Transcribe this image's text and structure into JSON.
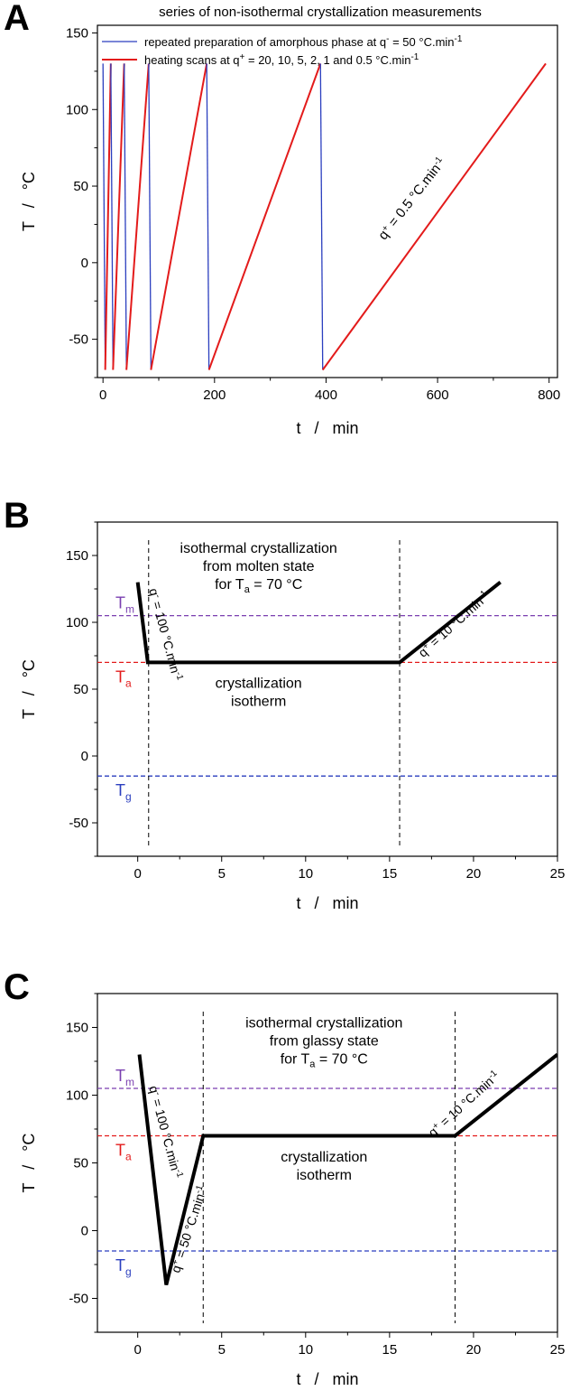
{
  "figure": {
    "panels": [
      "A",
      "B",
      "C"
    ]
  },
  "colors": {
    "cooling": "#2b3fbf",
    "heating": "#e31b1b",
    "protocol": "#000000",
    "Tm": "#7a3fb0",
    "Ta": "#e31b1b",
    "Tg": "#2b3fbf",
    "divider": "#000000"
  },
  "chart_data": [
    {
      "panel": "A",
      "type": "line",
      "title": "series of non-isothermal crystallization measurements",
      "xlabel": "t   /   min",
      "ylabel": "T   /   °C",
      "xlim": [
        -10,
        815
      ],
      "ylim": [
        -75,
        155
      ],
      "xticks": [
        0,
        200,
        400,
        600,
        800
      ],
      "yticks": [
        -50,
        0,
        50,
        100,
        150
      ],
      "grid": false,
      "legend": {
        "position": "top-left",
        "entries": [
          {
            "name_html": "repeated preparation of amorphous phase at q<tspan dy='-5' font-size='10'>-</tspan><tspan dy='5'> = 50 °C.min</tspan><tspan dy='-5' font-size='10'>-1</tspan>",
            "color_key": "cooling"
          },
          {
            "name_html": "heating scans at q<tspan dy='-5' font-size='10'>+</tspan><tspan dy='5'> = 20, 10, 5, 2, 1 and 0.5 °C.min</tspan><tspan dy='-5' font-size='10'>-1</tspan>",
            "color_key": "heating"
          }
        ]
      },
      "series": [
        {
          "kind": "cooling",
          "points": [
            [
              0,
              130
            ],
            [
              4,
              -70
            ]
          ]
        },
        {
          "kind": "heating",
          "points": [
            [
              4,
              -70
            ],
            [
              14,
              130
            ]
          ]
        },
        {
          "kind": "cooling",
          "points": [
            [
              14,
              130
            ],
            [
              18,
              -70
            ]
          ]
        },
        {
          "kind": "heating",
          "points": [
            [
              18,
              -70
            ],
            [
              38,
              130
            ]
          ]
        },
        {
          "kind": "cooling",
          "points": [
            [
              38,
              130
            ],
            [
              42,
              -70
            ]
          ]
        },
        {
          "kind": "heating",
          "points": [
            [
              42,
              -70
            ],
            [
              82,
              130
            ]
          ]
        },
        {
          "kind": "cooling",
          "points": [
            [
              82,
              130
            ],
            [
              86,
              -70
            ]
          ]
        },
        {
          "kind": "heating",
          "points": [
            [
              86,
              -70
            ],
            [
              186,
              130
            ]
          ]
        },
        {
          "kind": "cooling",
          "points": [
            [
              186,
              130
            ],
            [
              190,
              -70
            ]
          ]
        },
        {
          "kind": "heating",
          "points": [
            [
              190,
              -70
            ],
            [
              390,
              130
            ]
          ]
        },
        {
          "kind": "cooling",
          "points": [
            [
              390,
              130
            ],
            [
              394,
              -70
            ]
          ]
        },
        {
          "kind": "heating",
          "points": [
            [
              394,
              -70
            ],
            [
              794,
              130
            ]
          ]
        }
      ],
      "annotations": [
        {
          "html": "q<tspan dy='-5' font-size='10'>+</tspan><tspan dy='5'> = 0.5 °C.min</tspan><tspan dy='-5' font-size='10'>-1</tspan>",
          "x": 560,
          "y": 40,
          "angle": -52,
          "size": 15
        }
      ]
    },
    {
      "panel": "B",
      "type": "line",
      "title": "",
      "xlabel": "t   /   min",
      "ylabel": "T   /   °C",
      "xlim": [
        -2.4,
        25
      ],
      "ylim": [
        -75,
        175
      ],
      "xticks": [
        0,
        5,
        10,
        15,
        20,
        25
      ],
      "yticks": [
        -50,
        0,
        50,
        100,
        150
      ],
      "grid": false,
      "hlines": [
        {
          "name": "Tm",
          "y": 105,
          "color_key": "Tm",
          "label": "T",
          "sub": "m"
        },
        {
          "name": "Ta",
          "y": 70,
          "color_key": "Ta",
          "label": "T",
          "sub": "a"
        },
        {
          "name": "Tg",
          "y": -15,
          "color_key": "Tg",
          "label": "T",
          "sub": "g"
        }
      ],
      "vlines": [
        0.65,
        15.6
      ],
      "protocol": [
        [
          0,
          130
        ],
        [
          0.6,
          70
        ],
        [
          15.6,
          70
        ],
        [
          21.6,
          130
        ]
      ],
      "texts": [
        {
          "lines": [
            "isothermal crystallization",
            "from molten state",
            "for T<tspan dy='4' font-size='11'>a</tspan><tspan dy='-4'> = 70 °C</tspan>"
          ],
          "x": 7.2,
          "y": 152
        },
        {
          "lines": [
            "crystallization",
            "isotherm"
          ],
          "x": 7.2,
          "y": 51
        }
      ],
      "annotations": [
        {
          "html": "q<tspan dy='-5' font-size='10'>-</tspan><tspan dy='5'> = 100 °C.min</tspan><tspan dy='-5' font-size='10'>-1</tspan>",
          "x": 1.4,
          "y": 90,
          "angle": 75,
          "size": 14
        },
        {
          "html": "q<tspan dy='-5' font-size='10'>+</tspan><tspan dy='5'> = 10 °C.min</tspan><tspan dy='-5' font-size='10'>-1</tspan>",
          "x": 19.0,
          "y": 96,
          "angle": -42,
          "size": 14
        }
      ]
    },
    {
      "panel": "C",
      "type": "line",
      "title": "",
      "xlabel": "t   /   min",
      "ylabel": "T   /   °C",
      "xlim": [
        -2.4,
        25
      ],
      "ylim": [
        -75,
        175
      ],
      "xticks": [
        0,
        5,
        10,
        15,
        20,
        25
      ],
      "yticks": [
        -50,
        0,
        50,
        100,
        150
      ],
      "grid": false,
      "hlines": [
        {
          "name": "Tm",
          "y": 105,
          "color_key": "Tm",
          "label": "T",
          "sub": "m"
        },
        {
          "name": "Ta",
          "y": 70,
          "color_key": "Ta",
          "label": "T",
          "sub": "a"
        },
        {
          "name": "Tg",
          "y": -15,
          "color_key": "Tg",
          "label": "T",
          "sub": "g"
        }
      ],
      "vlines": [
        3.9,
        18.9
      ],
      "protocol": [
        [
          0.1,
          130
        ],
        [
          1.7,
          -40
        ],
        [
          3.9,
          70
        ],
        [
          18.9,
          70
        ],
        [
          25,
          130
        ]
      ],
      "texts": [
        {
          "lines": [
            "isothermal crystallization",
            "from glassy state",
            "for T<tspan dy='4' font-size='11'>a</tspan><tspan dy='-4'> = 70 °C</tspan>"
          ],
          "x": 11.1,
          "y": 150
        },
        {
          "lines": [
            "crystallization",
            "isotherm"
          ],
          "x": 11.1,
          "y": 51
        }
      ],
      "annotations": [
        {
          "html": "q<tspan dy='-5' font-size='10'>-</tspan><tspan dy='5'> = 100 °C.min</tspan><tspan dy='-5' font-size='10'>-1</tspan>",
          "x": 1.4,
          "y": 72,
          "angle": 75,
          "size": 14
        },
        {
          "html": "q<tspan dy='-5' font-size='10'>+</tspan><tspan dy='5'> = 50 °C.min</tspan><tspan dy='-5' font-size='10'>-1</tspan>",
          "x": 3.3,
          "y": 0,
          "angle": -72,
          "size": 14
        },
        {
          "html": "q<tspan dy='-5' font-size='10'>+</tspan><tspan dy='5'> = 10 °C.min</tspan><tspan dy='-5' font-size='10'>-1</tspan>",
          "x": 19.6,
          "y": 91,
          "angle": -42,
          "size": 14
        }
      ]
    }
  ]
}
